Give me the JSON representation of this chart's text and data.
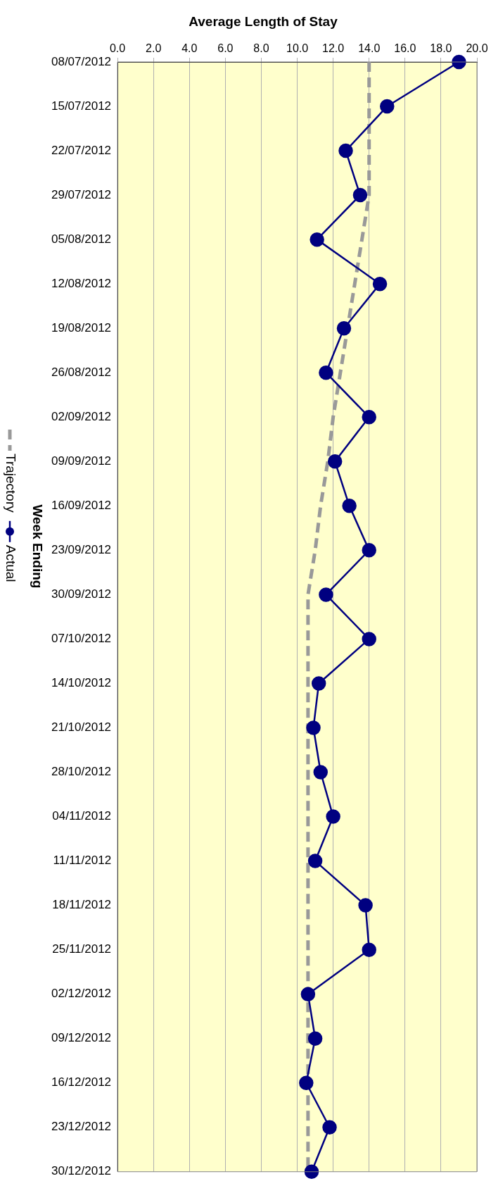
{
  "chart_data": {
    "type": "line",
    "orientation": "horizontal",
    "title": "Average Length of Stay",
    "ylabel": "Week Ending",
    "categories": [
      "08/07/2012",
      "15/07/2012",
      "22/07/2012",
      "29/07/2012",
      "05/08/2012",
      "12/08/2012",
      "19/08/2012",
      "26/08/2012",
      "02/09/2012",
      "09/09/2012",
      "16/09/2012",
      "23/09/2012",
      "30/09/2012",
      "07/10/2012",
      "14/10/2012",
      "21/10/2012",
      "28/10/2012",
      "04/11/2012",
      "11/11/2012",
      "18/11/2012",
      "25/11/2012",
      "02/12/2012",
      "09/12/2012",
      "16/12/2012",
      "23/12/2012",
      "30/12/2012"
    ],
    "series": [
      {
        "name": "Trajectory",
        "color": "#999999",
        "line_style": "dashed",
        "marker": "none",
        "values": [
          14.0,
          14.0,
          14.0,
          14.0,
          13.6,
          13.2,
          12.8,
          12.4,
          12.0,
          11.7,
          11.3,
          11.0,
          10.6,
          10.6,
          10.6,
          10.6,
          10.6,
          10.6,
          10.6,
          10.6,
          10.6,
          10.6,
          10.6,
          10.6,
          10.6,
          10.6
        ]
      },
      {
        "name": "Actual",
        "color": "#000080",
        "line_style": "solid",
        "marker": "circle",
        "values": [
          19.0,
          15.0,
          12.7,
          13.5,
          11.1,
          14.6,
          12.6,
          11.6,
          14.0,
          12.1,
          12.9,
          14.0,
          11.6,
          14.0,
          11.2,
          10.9,
          11.3,
          12.0,
          11.0,
          13.8,
          14.0,
          10.6,
          11.0,
          10.5,
          11.8,
          10.8
        ]
      }
    ],
    "xlim": [
      0,
      20
    ],
    "xticks": [
      {
        "value": 0,
        "label": "0.0"
      },
      {
        "value": 2,
        "label": "2.0"
      },
      {
        "value": 4,
        "label": "4.0"
      },
      {
        "value": 6,
        "label": "6.0"
      },
      {
        "value": 8,
        "label": "8.0"
      },
      {
        "value": 10,
        "label": "10.0"
      },
      {
        "value": 12,
        "label": "12.0"
      },
      {
        "value": 14,
        "label": "14.0"
      },
      {
        "value": 16,
        "label": "16.0"
      },
      {
        "value": 18,
        "label": "18.0"
      },
      {
        "value": 20,
        "label": "20.0"
      }
    ],
    "grid": "x",
    "legend": "left"
  }
}
